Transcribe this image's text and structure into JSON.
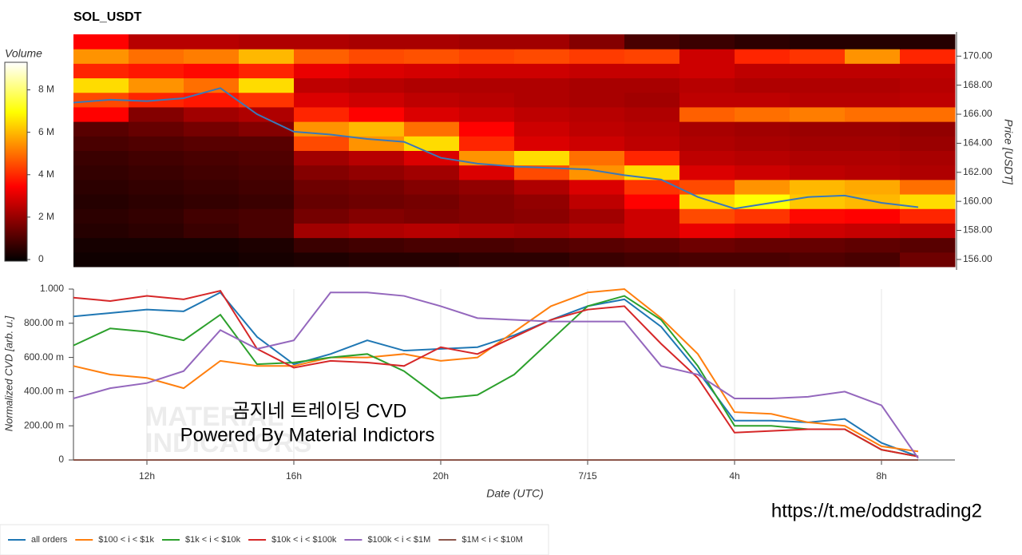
{
  "chart_data": [
    {
      "type": "heatmap",
      "title": "SOL_USDT",
      "ylabel": "Price [USDT]",
      "colorbar_title": "Volume",
      "colormap": "hot",
      "xlim": [
        10,
        34
      ],
      "ylim": [
        155.5,
        171.5
      ],
      "yticks": [
        {
          "value": 156,
          "label": "156.00"
        },
        {
          "value": 158,
          "label": "158.00"
        },
        {
          "value": 160,
          "label": "160.00"
        },
        {
          "value": 162,
          "label": "162.00"
        },
        {
          "value": 164,
          "label": "164.00"
        },
        {
          "value": 166,
          "label": "166.00"
        },
        {
          "value": 168,
          "label": "168.00"
        },
        {
          "value": 170,
          "label": "170.00"
        }
      ],
      "clim": [
        0,
        9.3
      ],
      "cticks": [
        0,
        {
          "value": 2,
          "label": "2 M"
        },
        {
          "value": 4,
          "label": "4 M"
        },
        {
          "value": 6,
          "label": "6 M"
        },
        {
          "value": 8,
          "label": "8 M"
        }
      ],
      "time_bins": [
        10,
        11.5,
        13,
        14.5,
        16,
        17.5,
        19,
        20.5,
        22,
        23.5,
        25,
        26.5,
        28,
        29.5,
        31,
        32.5,
        34
      ],
      "price_bins": [
        155.5,
        156.5,
        157.5,
        158.5,
        159.5,
        160.5,
        161.5,
        162.5,
        163.5,
        164.5,
        165.5,
        166.5,
        167.5,
        168.5,
        169.5,
        170.5,
        171.5
      ],
      "z": [
        [
          0.2,
          0.2,
          0.2,
          0.3,
          0.4,
          0.5,
          0.5,
          0.6,
          0.6,
          0.8,
          0.9,
          1.0,
          1.0,
          1.1,
          1.0,
          1.5
        ],
        [
          0.3,
          0.3,
          0.3,
          0.4,
          0.8,
          0.9,
          1.0,
          1.0,
          1.1,
          1.2,
          1.3,
          1.5,
          1.4,
          1.4,
          1.3,
          1.2
        ],
        [
          0.5,
          0.6,
          0.8,
          1.0,
          2.2,
          2.4,
          2.5,
          2.4,
          2.3,
          2.5,
          2.8,
          3.2,
          3.0,
          2.8,
          2.7,
          2.6
        ],
        [
          0.6,
          0.7,
          0.9,
          1.0,
          1.6,
          1.8,
          1.7,
          1.8,
          1.9,
          2.2,
          2.8,
          4.5,
          4.2,
          3.6,
          3.5,
          4.0
        ],
        [
          0.5,
          0.6,
          0.7,
          0.8,
          1.4,
          1.5,
          1.6,
          1.8,
          2.0,
          2.6,
          3.5,
          6.5,
          7.0,
          6.2,
          6.0,
          6.5
        ],
        [
          0.6,
          0.7,
          0.8,
          0.9,
          1.5,
          1.6,
          1.8,
          2.0,
          2.4,
          3.0,
          4.2,
          4.5,
          5.5,
          6.0,
          5.8,
          5.0
        ],
        [
          0.7,
          0.8,
          0.9,
          1.0,
          1.8,
          2.0,
          2.2,
          3.0,
          4.5,
          5.5,
          6.5,
          3.0,
          2.8,
          2.6,
          2.5,
          2.4
        ],
        [
          0.8,
          0.9,
          1.0,
          1.1,
          2.2,
          2.5,
          3.0,
          5.5,
          6.5,
          5.0,
          4.0,
          2.6,
          2.5,
          2.4,
          2.4,
          2.3
        ],
        [
          1.0,
          1.1,
          1.2,
          1.2,
          4.5,
          5.5,
          6.5,
          4.0,
          3.0,
          2.8,
          2.6,
          2.4,
          2.3,
          2.2,
          2.2,
          2.1
        ],
        [
          1.2,
          1.4,
          1.6,
          1.8,
          5.5,
          6.0,
          5.0,
          3.5,
          2.8,
          2.6,
          2.5,
          2.3,
          2.2,
          2.1,
          2.1,
          2.0
        ],
        [
          3.5,
          1.8,
          2.2,
          2.4,
          4.0,
          3.5,
          3.0,
          2.8,
          2.6,
          2.5,
          2.4,
          4.8,
          5.0,
          5.2,
          5.0,
          5.0
        ],
        [
          4.5,
          4.0,
          3.8,
          4.2,
          3.0,
          2.8,
          2.6,
          2.5,
          2.4,
          2.3,
          2.2,
          2.6,
          2.6,
          2.5,
          2.5,
          2.6
        ],
        [
          6.5,
          5.5,
          5.0,
          6.5,
          2.6,
          2.5,
          2.4,
          2.4,
          2.4,
          2.3,
          2.3,
          2.5,
          2.4,
          2.4,
          2.4,
          2.5
        ],
        [
          4.0,
          3.8,
          3.6,
          4.0,
          3.2,
          3.0,
          2.9,
          2.8,
          2.8,
          2.7,
          2.7,
          2.8,
          2.6,
          2.6,
          2.6,
          2.6
        ],
        [
          5.5,
          5.0,
          5.2,
          6.0,
          4.8,
          4.5,
          4.6,
          4.4,
          4.5,
          4.3,
          4.4,
          2.8,
          4.0,
          4.2,
          5.5,
          4.0
        ],
        [
          3.5,
          2.5,
          2.5,
          2.4,
          2.4,
          2.3,
          2.3,
          2.2,
          2.2,
          1.8,
          1.0,
          0.8,
          0.6,
          0.5,
          0.5,
          0.5
        ]
      ],
      "x": [
        10,
        11,
        12,
        13,
        14,
        15,
        16,
        17,
        18,
        19,
        20,
        21,
        22,
        23,
        24,
        25,
        26,
        27,
        28,
        29,
        30,
        31,
        32,
        33
      ],
      "series": [
        {
          "color": "#3b78b8",
          "values": [
            166.8,
            167.0,
            166.9,
            167.1,
            167.8,
            166.0,
            164.8,
            164.6,
            164.3,
            164.1,
            163.0,
            162.6,
            162.4,
            162.3,
            162.2,
            161.8,
            161.5,
            160.3,
            159.5,
            159.9,
            160.3,
            160.4,
            159.9,
            159.6
          ]
        }
      ]
    },
    {
      "type": "line",
      "ylabel": "Normalized CVD [arb. u.]",
      "xlabel": "Date (UTC)",
      "grid": true,
      "legend": "bottom",
      "annotations": [
        "곰지네 트레이딩 CVD",
        "Powered By Material Indictors"
      ],
      "watermark": [
        "MATERIAL",
        "INDICATORS"
      ],
      "xlim": [
        10,
        34
      ],
      "xticks": [
        {
          "value": 12,
          "label": "12h"
        },
        {
          "value": 16,
          "label": "16h"
        },
        {
          "value": 20,
          "label": "20h"
        },
        {
          "value": 24,
          "label": "7/15"
        },
        {
          "value": 28,
          "label": "4h"
        },
        {
          "value": 32,
          "label": "8h"
        }
      ],
      "ylim": [
        0,
        1
      ],
      "yticks": [
        0,
        {
          "value": 0.2,
          "label": "200.00 m"
        },
        {
          "value": 0.4,
          "label": "400.00 m"
        },
        {
          "value": 0.6,
          "label": "600.00 m"
        },
        {
          "value": 0.8,
          "label": "800.00 m"
        },
        {
          "value": 1,
          "label": "1.000"
        }
      ],
      "x": [
        10,
        11,
        12,
        13,
        14,
        15,
        16,
        17,
        18,
        19,
        20,
        21,
        22,
        23,
        24,
        25,
        26,
        27,
        28,
        29,
        30,
        31,
        32,
        33
      ],
      "series": [
        {
          "name": "all orders",
          "color": "#1f77b4",
          "values": [
            0.84,
            0.86,
            0.88,
            0.87,
            0.98,
            0.72,
            0.56,
            0.62,
            0.7,
            0.64,
            0.65,
            0.66,
            0.73,
            0.82,
            0.9,
            0.94,
            0.78,
            0.52,
            0.23,
            0.23,
            0.22,
            0.24,
            0.1,
            0.02
          ]
        },
        {
          "name": "$100 < i < $1k",
          "color": "#ff7f0e",
          "values": [
            0.55,
            0.5,
            0.48,
            0.42,
            0.58,
            0.55,
            0.55,
            0.6,
            0.6,
            0.62,
            0.58,
            0.6,
            0.75,
            0.9,
            0.98,
            1.0,
            0.83,
            0.62,
            0.28,
            0.27,
            0.22,
            0.2,
            0.08,
            0.05
          ]
        },
        {
          "name": "$1k < i < $10k",
          "color": "#2ca02c",
          "values": [
            0.67,
            0.77,
            0.75,
            0.7,
            0.85,
            0.56,
            0.57,
            0.6,
            0.62,
            0.52,
            0.36,
            0.38,
            0.5,
            0.7,
            0.9,
            0.96,
            0.82,
            0.55,
            0.2,
            0.2,
            0.18,
            0.18,
            0.06,
            0.02
          ]
        },
        {
          "name": "$10k < i < $100k",
          "color": "#d62728",
          "values": [
            0.95,
            0.93,
            0.96,
            0.94,
            0.99,
            0.65,
            0.54,
            0.58,
            0.57,
            0.55,
            0.66,
            0.62,
            0.72,
            0.82,
            0.88,
            0.9,
            0.68,
            0.48,
            0.16,
            0.17,
            0.18,
            0.18,
            0.06,
            0.02
          ]
        },
        {
          "name": "$100k < i < $1M",
          "color": "#9467bd",
          "values": [
            0.36,
            0.42,
            0.45,
            0.52,
            0.76,
            0.65,
            0.7,
            0.98,
            0.98,
            0.96,
            0.9,
            0.83,
            0.82,
            0.81,
            0.81,
            0.81,
            0.55,
            0.5,
            0.36,
            0.36,
            0.37,
            0.4,
            0.32,
            0.01
          ]
        },
        {
          "name": "$1M < i < $10M",
          "color": "#8c564b",
          "values": [
            0,
            0,
            0,
            0,
            0,
            0,
            0,
            0,
            0,
            0,
            0,
            0,
            0,
            0,
            0,
            0,
            0,
            0,
            0,
            0,
            0,
            0,
            0,
            0
          ]
        }
      ]
    }
  ],
  "footer_link": "https://t.me/oddstrading2"
}
